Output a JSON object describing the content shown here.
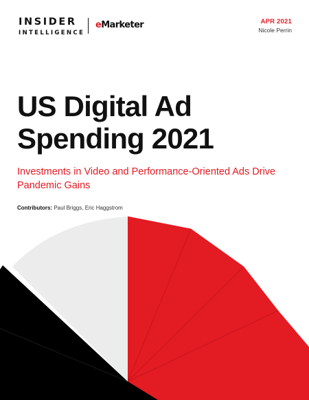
{
  "header": {
    "logo_line1": "INSIDER",
    "logo_line2": "INTELLIGENCE",
    "partner_logo_prefix": "e",
    "partner_logo_rest": "Marketer",
    "date": "APR 2021",
    "author": "Nicole Perrin"
  },
  "title_lines": [
    "US Digital Ad",
    "Spending 2021"
  ],
  "subtitle_lines": [
    "Investments in Video and Performance-Oriented Ads Drive",
    "Pandemic Gains"
  ],
  "contributors": {
    "label": "Contributors:",
    "names": " Paul Briggs, Eric Haggstrom"
  },
  "colors": {
    "accent": "#e31b23",
    "dark": "#000000",
    "light_gray": "#ececec",
    "text": "#111111"
  },
  "decorative_pie_colors": [
    "red",
    "red",
    "red",
    "red",
    "black",
    "black",
    "black",
    "light_gray"
  ]
}
